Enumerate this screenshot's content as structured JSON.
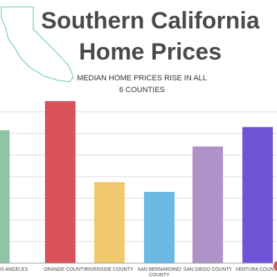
{
  "header": {
    "title_line1": "Southern California",
    "title_line2": "Home Prices",
    "subtitle_line1": "MEDIAN HOME PRICES RISE IN ALL",
    "subtitle_line2": "6 COUNTIES"
  },
  "colors": {
    "title": "#4a4a4a",
    "grid": "#d9d9d9",
    "baseline": "#9e9e9e",
    "map_outline": "#7fcfb0"
  },
  "chart_data": {
    "type": "bar",
    "title": "MEDIAN HOME PRICES RISE IN ALL 6 COUNTIES",
    "xlabel": "",
    "ylabel": "",
    "grid": true,
    "categories": [
      "LOS ANGELES",
      "ORANGE COUNTY",
      "RIVERSIDE COUNTY",
      "SAN BERNARDINO COUNTY",
      "SAN DIEGO COUNTY",
      "VENTURA COUNTY"
    ],
    "visible_category_text": [
      "OS ANGELES",
      "ORANGE COUNTY",
      "RIVERSIDE COUNTY",
      "SAN BERNARDINO COUNTY",
      "SAN DIEGO COUNTY",
      "VENTURA COUNTY"
    ],
    "values": [
      6.15,
      7.5,
      3.75,
      3.3,
      5.4,
      6.3
    ],
    "ylim": [
      0,
      7.5
    ],
    "bar_colors": [
      "#8fc5a6",
      "#d9525a",
      "#f0c96e",
      "#6bb8e3",
      "#ae92c8",
      "#6e54d6"
    ]
  },
  "icons": {
    "map": "california-outline-icon",
    "corner": "red-badge-icon"
  }
}
